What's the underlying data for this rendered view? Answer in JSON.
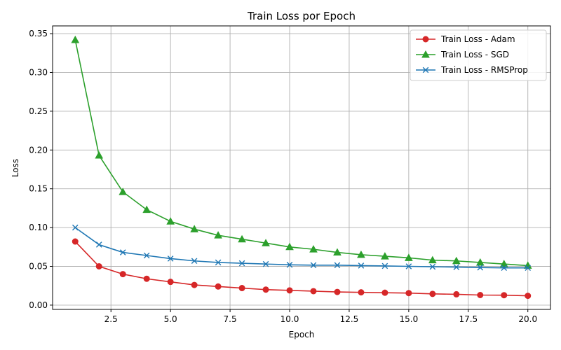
{
  "chart_data": {
    "type": "line",
    "title": "Train Loss por Epoch",
    "xlabel": "Epoch",
    "ylabel": "Loss",
    "xlim": [
      0.05,
      20.95
    ],
    "ylim": [
      -0.0055,
      0.36
    ],
    "grid": true,
    "legend_position": "top-right",
    "x": [
      1,
      2,
      3,
      4,
      5,
      6,
      7,
      8,
      9,
      10,
      11,
      12,
      13,
      14,
      15,
      16,
      17,
      18,
      19,
      20
    ],
    "x_ticks": [
      2.5,
      5.0,
      7.5,
      10.0,
      12.5,
      15.0,
      17.5,
      20.0
    ],
    "x_tick_labels": [
      "2.5",
      "5.0",
      "7.5",
      "10.0",
      "12.5",
      "15.0",
      "17.5",
      "20.0"
    ],
    "y_ticks": [
      0.0,
      0.05,
      0.1,
      0.15,
      0.2,
      0.25,
      0.3,
      0.35
    ],
    "y_tick_labels": [
      "0.00",
      "0.05",
      "0.10",
      "0.15",
      "0.20",
      "0.25",
      "0.30",
      "0.35"
    ],
    "series": [
      {
        "name": "Train Loss - Adam",
        "color": "#d62728",
        "marker": "circle",
        "values": [
          0.082,
          0.05,
          0.04,
          0.034,
          0.03,
          0.026,
          0.024,
          0.022,
          0.02,
          0.019,
          0.018,
          0.017,
          0.0165,
          0.016,
          0.0155,
          0.0145,
          0.014,
          0.013,
          0.0128,
          0.012
        ]
      },
      {
        "name": "Train Loss - SGD",
        "color": "#2ca02c",
        "marker": "triangle",
        "values": [
          0.342,
          0.193,
          0.146,
          0.123,
          0.108,
          0.098,
          0.09,
          0.085,
          0.08,
          0.075,
          0.072,
          0.068,
          0.065,
          0.063,
          0.061,
          0.058,
          0.057,
          0.055,
          0.053,
          0.051
        ]
      },
      {
        "name": "Train Loss - RMSProp",
        "color": "#1f77b4",
        "marker": "x",
        "values": [
          0.1,
          0.078,
          0.068,
          0.064,
          0.06,
          0.057,
          0.055,
          0.054,
          0.053,
          0.052,
          0.0515,
          0.0515,
          0.051,
          0.0505,
          0.05,
          0.0495,
          0.049,
          0.0485,
          0.048,
          0.048
        ]
      }
    ]
  }
}
